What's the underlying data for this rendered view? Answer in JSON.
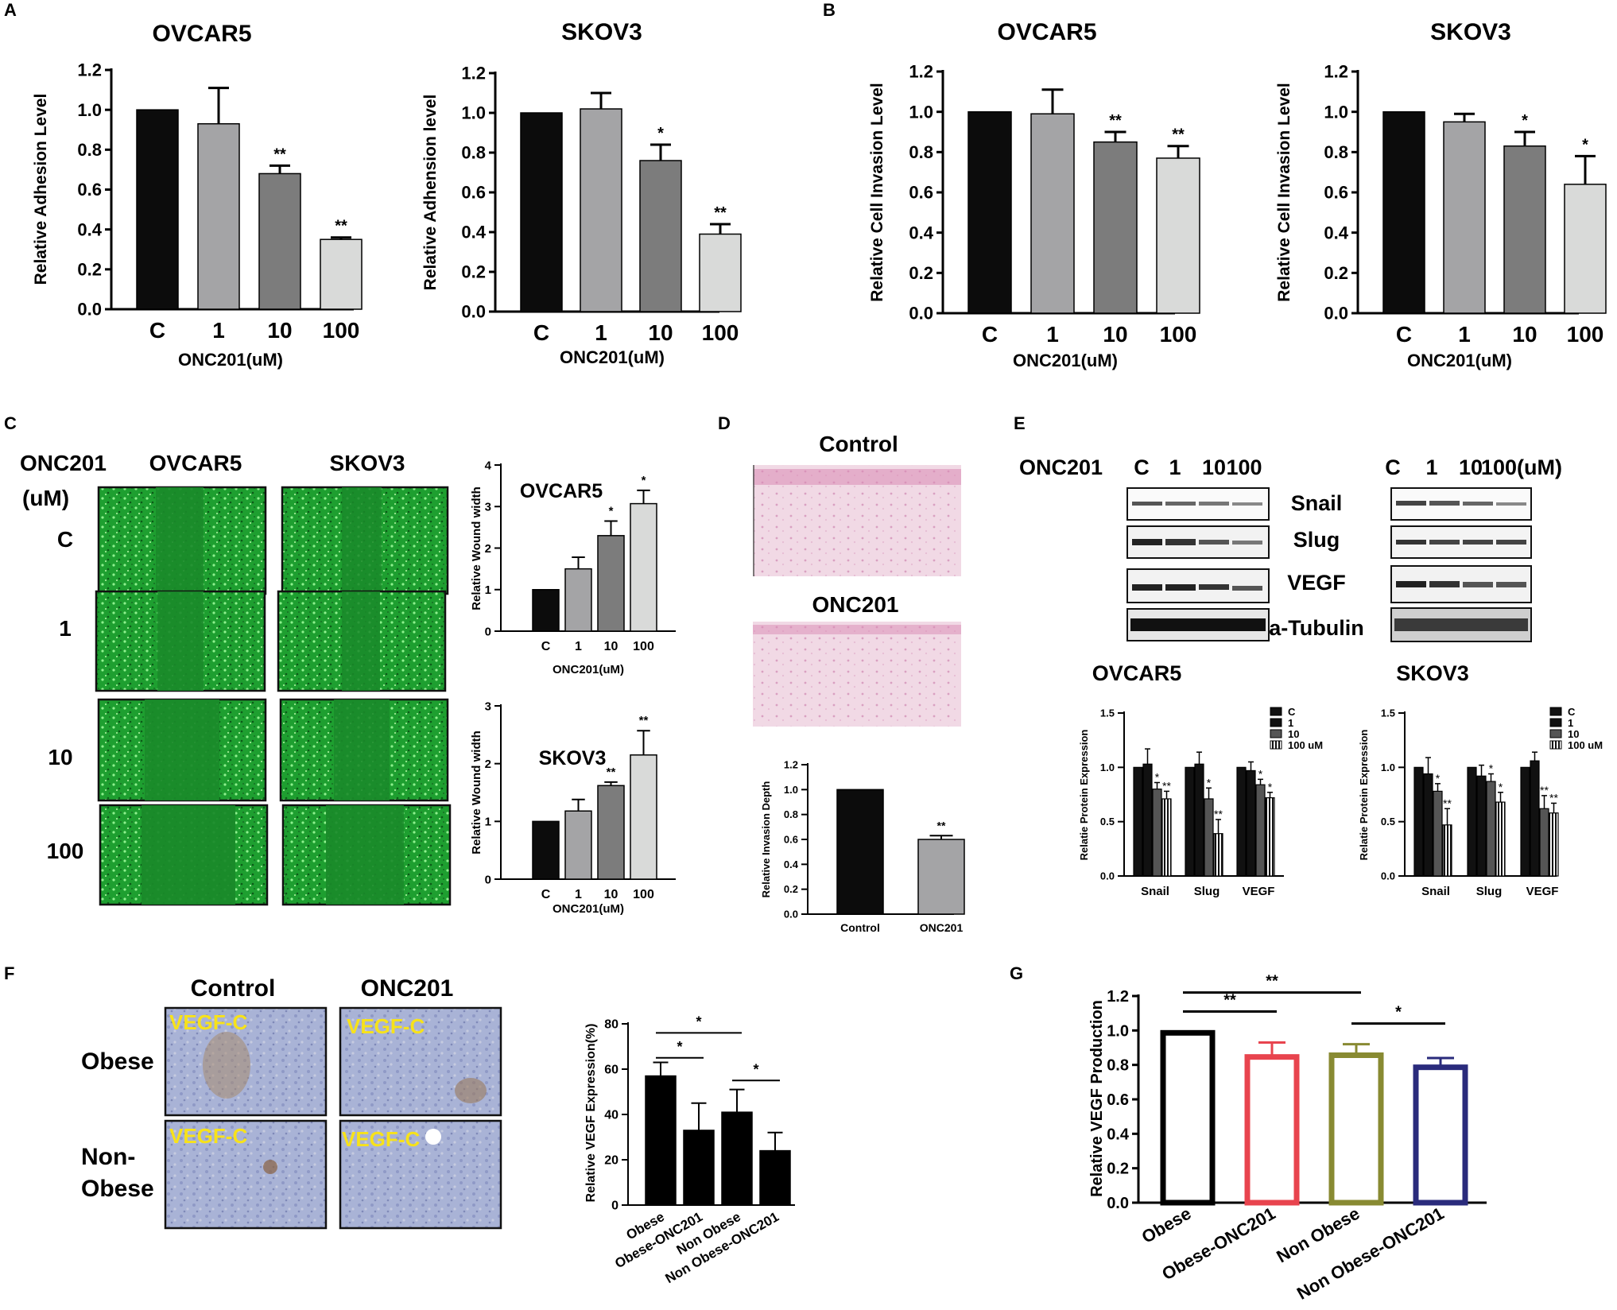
{
  "figure": {
    "panel_letters": [
      "A",
      "B",
      "C",
      "D",
      "E",
      "F",
      "G"
    ]
  },
  "chart_data": [
    {
      "id": "A1",
      "type": "bar",
      "panel": "A",
      "title": "OVCAR5",
      "ylabel": "Relative Adhesion Level",
      "xlabel": "ONC201(uM)",
      "categories": [
        "C",
        "1",
        "10",
        "100"
      ],
      "values": [
        1.0,
        0.93,
        0.68,
        0.35
      ],
      "errors": [
        0,
        0.18,
        0.04,
        0.01
      ],
      "significance": [
        "",
        "",
        "**",
        "**"
      ],
      "colors": [
        "#0c0c0c",
        "#a4a4a6",
        "#7c7c7c",
        "#d9dad9"
      ],
      "ylim": [
        0,
        1.2
      ],
      "yticks": [
        "0.0",
        "0.2",
        "0.4",
        "0.6",
        "0.8",
        "1.0",
        "1.2"
      ]
    },
    {
      "id": "A2",
      "type": "bar",
      "panel": "A",
      "title": "SKOV3",
      "ylabel": "Relative Adhension level",
      "xlabel": "ONC201(uM)",
      "categories": [
        "C",
        "1",
        "10",
        "100"
      ],
      "values": [
        1.0,
        1.02,
        0.76,
        0.39
      ],
      "errors": [
        0,
        0.08,
        0.08,
        0.05
      ],
      "significance": [
        "",
        "",
        "*",
        "**"
      ],
      "colors": [
        "#0c0c0c",
        "#a4a4a6",
        "#7c7c7c",
        "#d9dad9"
      ],
      "ylim": [
        0,
        1.2
      ],
      "yticks": [
        "0.0",
        "0.2",
        "0.4",
        "0.6",
        "0.8",
        "1.0",
        "1.2"
      ]
    },
    {
      "id": "B1",
      "type": "bar",
      "panel": "B",
      "title": "OVCAR5",
      "ylabel": "Relative Cell Invasion Level",
      "xlabel": "ONC201(uM)",
      "categories": [
        "C",
        "1",
        "10",
        "100"
      ],
      "values": [
        1.0,
        0.99,
        0.85,
        0.77
      ],
      "errors": [
        0,
        0.12,
        0.05,
        0.06
      ],
      "significance": [
        "",
        "",
        "**",
        "**"
      ],
      "colors": [
        "#0c0c0c",
        "#a4a4a6",
        "#7c7c7c",
        "#d9dad9"
      ],
      "ylim": [
        0,
        1.2
      ],
      "yticks": [
        "0.0",
        "0.2",
        "0.4",
        "0.6",
        "0.8",
        "1.0",
        "1.2"
      ]
    },
    {
      "id": "B2",
      "type": "bar",
      "panel": "B",
      "title": "SKOV3",
      "ylabel": "Relative Cell Invasion Level",
      "xlabel": "ONC201(uM)",
      "categories": [
        "C",
        "1",
        "10",
        "100"
      ],
      "values": [
        1.0,
        0.95,
        0.83,
        0.64
      ],
      "errors": [
        0,
        0.04,
        0.07,
        0.14
      ],
      "significance": [
        "",
        "",
        "*",
        "*"
      ],
      "colors": [
        "#0c0c0c",
        "#a4a4a6",
        "#7c7c7c",
        "#d9dad9"
      ],
      "ylim": [
        0,
        1.2
      ],
      "yticks": [
        "0.0",
        "0.2",
        "0.4",
        "0.6",
        "0.8",
        "1.0",
        "1.2"
      ]
    },
    {
      "id": "C1",
      "type": "bar",
      "panel": "C",
      "title": "OVCAR5",
      "ylabel": "Relative Wound width",
      "xlabel": "ONC201(uM)",
      "categories": [
        "C",
        "1",
        "10",
        "100"
      ],
      "values": [
        1.0,
        1.5,
        2.3,
        3.07
      ],
      "errors": [
        0,
        0.28,
        0.35,
        0.32
      ],
      "significance": [
        "",
        "",
        "*",
        "*"
      ],
      "colors": [
        "#0c0c0c",
        "#a4a4a6",
        "#7c7c7c",
        "#d9dad9"
      ],
      "ylim": [
        0,
        4
      ],
      "yticks": [
        "0",
        "1",
        "2",
        "3",
        "4"
      ]
    },
    {
      "id": "C2",
      "type": "bar",
      "panel": "C",
      "title": "SKOV3",
      "ylabel": "Relative Wound width",
      "xlabel": "ONC201(uM)",
      "categories": [
        "C",
        "1",
        "10",
        "100"
      ],
      "values": [
        1.0,
        1.18,
        1.62,
        2.15
      ],
      "errors": [
        0,
        0.2,
        0.06,
        0.42
      ],
      "significance": [
        "",
        "",
        "**",
        "**"
      ],
      "colors": [
        "#0c0c0c",
        "#a4a4a6",
        "#7c7c7c",
        "#d9dad9"
      ],
      "ylim": [
        0,
        3
      ],
      "yticks": [
        "0",
        "1",
        "2",
        "3"
      ]
    },
    {
      "id": "D",
      "type": "bar",
      "panel": "D",
      "title": "",
      "ylabel": "Relative Invasion Depth",
      "xlabel": "",
      "categories": [
        "Control",
        "ONC201"
      ],
      "values": [
        1.0,
        0.6
      ],
      "errors": [
        0,
        0.03
      ],
      "significance": [
        "",
        "**"
      ],
      "colors": [
        "#0c0c0c",
        "#a4a4a6"
      ],
      "ylim": [
        0,
        1.2
      ],
      "yticks": [
        "0.0",
        "0.2",
        "0.4",
        "0.6",
        "0.8",
        "1.0",
        "1.2"
      ]
    },
    {
      "id": "E1",
      "type": "bar",
      "panel": "E",
      "title": "OVCAR5",
      "ylabel": "Relatie Protein Expression",
      "xlabel": "",
      "categories": [
        "Snail",
        "Slug",
        "VEGF"
      ],
      "series": [
        {
          "name": "C",
          "values": [
            1.0,
            1.0,
            1.0
          ],
          "errors": [
            0,
            0,
            0
          ],
          "sig": [
            "",
            "",
            ""
          ]
        },
        {
          "name": "1",
          "values": [
            1.03,
            1.03,
            0.97
          ],
          "errors": [
            0.14,
            0.11,
            0.08
          ],
          "sig": [
            "",
            "",
            ""
          ]
        },
        {
          "name": "10",
          "values": [
            0.8,
            0.71,
            0.84
          ],
          "errors": [
            0.06,
            0.1,
            0.05
          ],
          "sig": [
            "*",
            "*",
            "*"
          ]
        },
        {
          "name": "100 uM",
          "values": [
            0.71,
            0.39,
            0.72
          ],
          "errors": [
            0.07,
            0.13,
            0.05
          ],
          "sig": [
            "**",
            "**",
            "*"
          ]
        }
      ],
      "ylim": [
        0,
        1.5
      ],
      "yticks": [
        "0.0",
        "0.5",
        "1.0",
        "1.5"
      ]
    },
    {
      "id": "E2",
      "type": "bar",
      "panel": "E",
      "title": "SKOV3",
      "ylabel": "Relatie Protein Expression",
      "xlabel": "",
      "categories": [
        "Snail",
        "Slug",
        "VEGF"
      ],
      "series": [
        {
          "name": "C",
          "values": [
            1.0,
            1.0,
            1.0
          ],
          "errors": [
            0,
            0,
            0
          ],
          "sig": [
            "",
            "",
            ""
          ]
        },
        {
          "name": "1",
          "values": [
            0.94,
            0.92,
            1.06
          ],
          "errors": [
            0.15,
            0.1,
            0.08
          ],
          "sig": [
            "",
            "",
            ""
          ]
        },
        {
          "name": "10",
          "values": [
            0.78,
            0.87,
            0.62
          ],
          "errors": [
            0.07,
            0.07,
            0.12
          ],
          "sig": [
            "*",
            "*",
            "**"
          ]
        },
        {
          "name": "100 uM",
          "values": [
            0.47,
            0.68,
            0.58
          ],
          "errors": [
            0.15,
            0.09,
            0.09
          ],
          "sig": [
            "**",
            "*",
            "**"
          ]
        }
      ],
      "ylim": [
        0,
        1.5
      ],
      "yticks": [
        "0.0",
        "0.5",
        "1.0",
        "1.5"
      ]
    },
    {
      "id": "F",
      "type": "bar",
      "panel": "F",
      "title": "",
      "ylabel": "Relative VEGF Expression(%)",
      "xlabel": "",
      "categories": [
        "Obese",
        "Obese-ONC201",
        "Non Obese",
        "Non Obese-ONC201"
      ],
      "values": [
        57,
        33,
        41,
        24
      ],
      "errors": [
        6,
        12,
        10,
        8
      ],
      "ylim": [
        0,
        80
      ],
      "yticks": [
        "0",
        "20",
        "40",
        "60",
        "80"
      ],
      "brackets": [
        {
          "from": 0,
          "to": 1,
          "label": "*",
          "level": 65
        },
        {
          "from": 0,
          "to": 2,
          "label": "*",
          "level": 76
        },
        {
          "from": 2,
          "to": 3,
          "label": "*",
          "level": 55
        }
      ]
    },
    {
      "id": "G",
      "type": "bar",
      "panel": "G",
      "title": "",
      "ylabel": "Relative VEGF Production",
      "xlabel": "",
      "categories": [
        "Obese",
        "Obese-ONC201",
        "Non Obese",
        "Non Obese-ONC201"
      ],
      "values": [
        1.0,
        0.86,
        0.87,
        0.8
      ],
      "errors": [
        0,
        0.07,
        0.05,
        0.04
      ],
      "colors": [
        "#000000",
        "#e8444e",
        "#888a32",
        "#2a2b7c"
      ],
      "ylim": [
        0,
        1.2
      ],
      "yticks": [
        "0.0",
        "0.2",
        "0.4",
        "0.6",
        "0.8",
        "1.0",
        "1.2"
      ],
      "brackets": [
        {
          "from": 0,
          "to": 1,
          "label": "**",
          "level": 1.11
        },
        {
          "from": 0,
          "to": 2,
          "label": "**",
          "level": 1.22
        },
        {
          "from": 2,
          "to": 3,
          "label": "*",
          "level": 1.04
        }
      ]
    }
  ],
  "panel_c": {
    "header": [
      "ONC201",
      "(uM)"
    ],
    "columns": [
      "OVCAR5",
      "SKOV3"
    ],
    "rows": [
      "C",
      "1",
      "10",
      "100"
    ]
  },
  "panel_d": {
    "labels": [
      "Control",
      "ONC201"
    ]
  },
  "panel_e": {
    "treatment_label": "ONC201",
    "lanes_left": [
      "C",
      "1",
      "10",
      "100"
    ],
    "lanes_right": [
      "C",
      "1",
      "10",
      "100(uM)"
    ],
    "proteins": [
      "Snail",
      "Slug",
      "VEGF",
      "a-Tubulin"
    ]
  },
  "panel_f": {
    "columns": [
      "Control",
      "ONC201"
    ],
    "rows": [
      "Obese",
      "Non-",
      "Obese"
    ],
    "stain_label": "VEGF-C"
  }
}
